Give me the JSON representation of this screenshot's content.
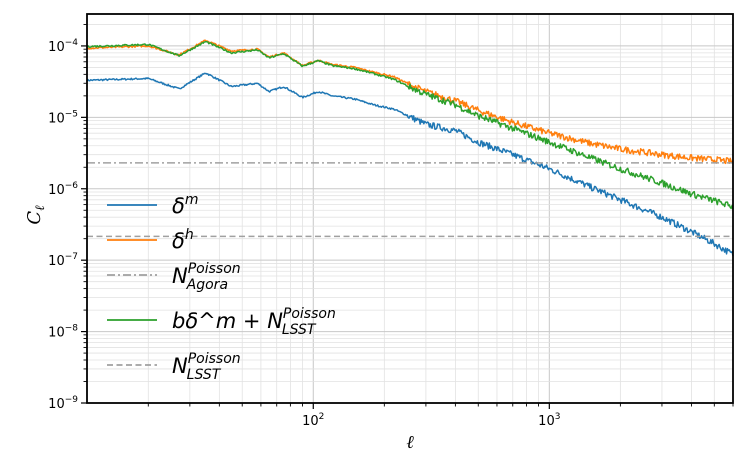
{
  "chart_data": {
    "type": "line",
    "title": "",
    "xlabel": "ℓ",
    "ylabel": "C_ℓ",
    "xscale": "log",
    "yscale": "log",
    "xlim": [
      11,
      6000
    ],
    "ylim": [
      1e-09,
      0.00028
    ],
    "grid": true,
    "legend_position": "center-left",
    "x_ticks": [
      {
        "value": 100,
        "base": "10",
        "exp": "2"
      },
      {
        "value": 1000,
        "base": "10",
        "exp": "3"
      }
    ],
    "y_ticks": [
      {
        "value": 1e-09,
        "base": "10",
        "exp": "−9"
      },
      {
        "value": 1e-08,
        "base": "10",
        "exp": "−8"
      },
      {
        "value": 1e-07,
        "base": "10",
        "exp": "−7"
      },
      {
        "value": 1e-06,
        "base": "10",
        "exp": "−6"
      },
      {
        "value": 1e-05,
        "base": "10",
        "exp": "−5"
      },
      {
        "value": 0.0001,
        "base": "10",
        "exp": "−4"
      }
    ],
    "series": [
      {
        "name": "δ^m",
        "label": {
          "main": "δ",
          "sup": "m",
          "sub": "",
          "prefix": ""
        },
        "color": "#1f77b4",
        "dash": "solid",
        "x": [
          11,
          20,
          27,
          35,
          45,
          58,
          65,
          75,
          90,
          105,
          120,
          150,
          180,
          220,
          260,
          300,
          400,
          500,
          700,
          1000,
          1500,
          2000,
          3000,
          4000,
          5000,
          6000
        ],
        "y": [
          3.3e-05,
          3.5e-05,
          2.5e-05,
          4.2e-05,
          2.7e-05,
          3e-05,
          2.3e-05,
          2.7e-05,
          1.9e-05,
          2.3e-05,
          2e-05,
          1.8e-05,
          1.5e-05,
          1.3e-05,
          1e-05,
          8e-06,
          6.5e-06,
          4.5e-06,
          3e-06,
          1.9e-06,
          1.05e-06,
          7e-07,
          4e-07,
          2.5e-07,
          1.7e-07,
          1.2e-07
        ]
      },
      {
        "name": "δ^h",
        "label": {
          "main": "δ",
          "sup": "h",
          "sub": "",
          "prefix": ""
        },
        "color": "#ff7f0e",
        "dash": "solid",
        "x": [
          11,
          20,
          27,
          35,
          45,
          58,
          65,
          75,
          90,
          105,
          120,
          150,
          180,
          220,
          260,
          300,
          400,
          500,
          700,
          1000,
          1500,
          2000,
          3000,
          4000,
          5000,
          6000
        ],
        "y": [
          9.3e-05,
          0.0001,
          7.5e-05,
          0.00012,
          8.5e-05,
          9e-05,
          7e-05,
          8e-05,
          5.3e-05,
          6.3e-05,
          5.5e-05,
          5e-05,
          4.3e-05,
          3.7e-05,
          2.8e-05,
          2.3e-05,
          1.7e-05,
          1.25e-05,
          8.5e-06,
          6e-06,
          4.3e-06,
          3.6e-06,
          3e-06,
          2.7e-06,
          2.55e-06,
          2.4e-06
        ]
      },
      {
        "name": "N^Poisson_Agora",
        "label": {
          "main": "N",
          "sup": "Poisson",
          "sub": "Agora",
          "prefix": ""
        },
        "color": "#a0a0a0",
        "dash": "dashdot",
        "x": [
          11,
          6000
        ],
        "y": [
          2.3e-06,
          2.3e-06
        ]
      },
      {
        "name": "bδ^m + N^Poisson_LSST",
        "label": {
          "main": "N",
          "sup": "Poisson",
          "sub": "LSST",
          "prefix": "bδ^m + "
        },
        "color": "#2ca02c",
        "dash": "solid",
        "x": [
          11,
          20,
          27,
          35,
          45,
          58,
          65,
          75,
          90,
          105,
          120,
          150,
          180,
          220,
          260,
          300,
          400,
          500,
          700,
          1000,
          1500,
          2000,
          3000,
          4000,
          5000,
          6000
        ],
        "y": [
          9.8e-05,
          0.000105,
          7.3e-05,
          0.000115,
          8e-05,
          8.8e-05,
          6.8e-05,
          7.8e-05,
          5.2e-05,
          6.2e-05,
          5.3e-05,
          4.8e-05,
          4.1e-05,
          3.4e-05,
          2.6e-05,
          2.1e-05,
          1.5e-05,
          1.05e-05,
          7e-06,
          4.5e-06,
          2.7e-06,
          1.9e-06,
          1.2e-06,
          8.5e-07,
          6.8e-07,
          5.6e-07
        ]
      },
      {
        "name": "N^Poisson_LSST",
        "label": {
          "main": "N",
          "sup": "Poisson",
          "sub": "LSST",
          "prefix": ""
        },
        "color": "#a0a0a0",
        "dash": "dashed",
        "x": [
          11,
          6000
        ],
        "y": [
          2.15e-07,
          2.15e-07
        ]
      }
    ]
  }
}
